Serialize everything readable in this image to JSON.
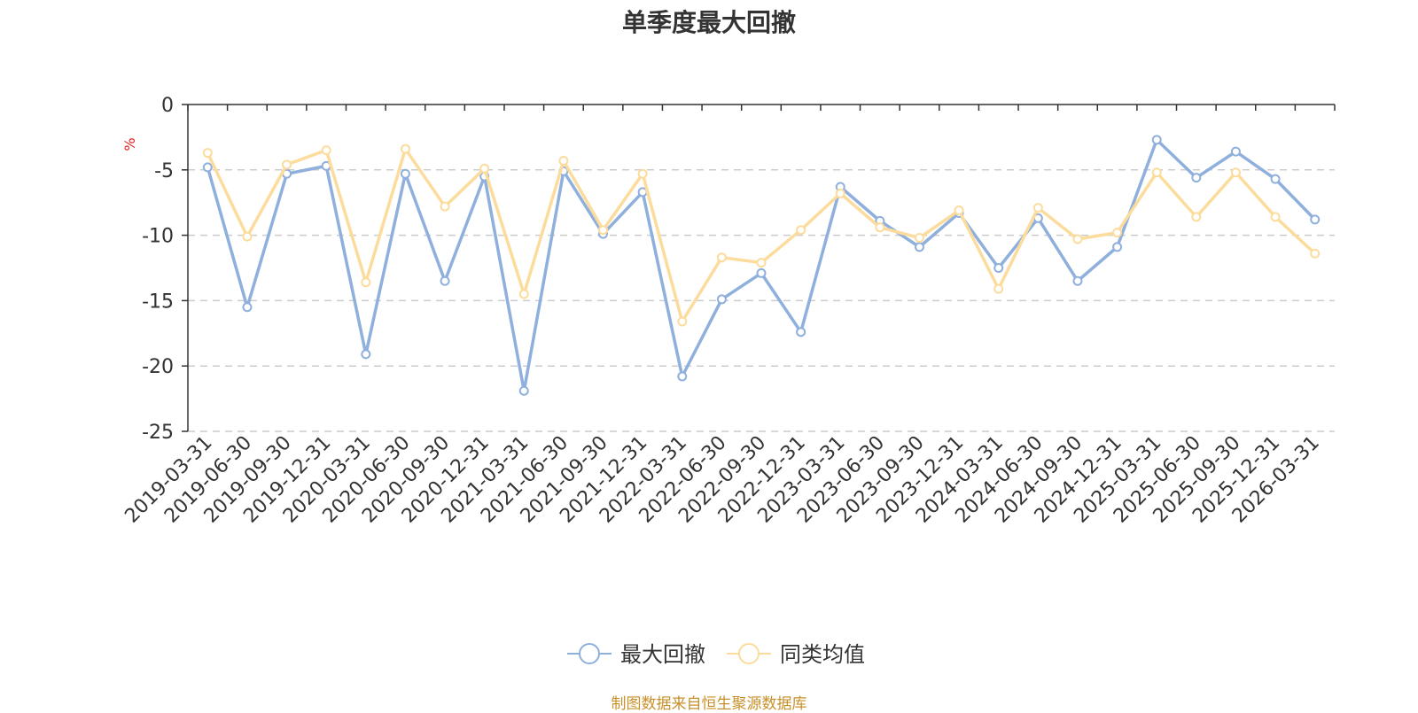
{
  "chart_data": {
    "type": "line",
    "title": "单季度最大回撤",
    "ylabel": "%",
    "ylim": [
      -25,
      0
    ],
    "yticks": [
      0,
      -5,
      -10,
      -15,
      -20,
      -25
    ],
    "grid": true,
    "legend_position": "bottom-center",
    "categories": [
      "2019-03-31",
      "2019-06-30",
      "2019-09-30",
      "2019-12-31",
      "2020-03-31",
      "2020-06-30",
      "2020-09-30",
      "2020-12-31",
      "2021-03-31",
      "2021-06-30",
      "2021-09-30",
      "2021-12-31",
      "2022-03-31",
      "2022-06-30",
      "2022-09-30",
      "2022-12-31",
      "2023-03-31",
      "2023-06-30",
      "2023-09-30",
      "2023-12-31",
      "2024-03-31",
      "2024-06-30",
      "2024-09-30",
      "2024-12-31",
      "2025-03-31",
      "2025-06-30",
      "2025-09-30",
      "2025-12-31",
      "2026-03-31"
    ],
    "series": [
      {
        "name": "最大回撤",
        "color": "#8fb0dc",
        "values": [
          -4.8,
          -15.5,
          -5.3,
          -4.7,
          -19.1,
          -5.3,
          -13.5,
          -5.5,
          -21.9,
          -5.1,
          -9.9,
          -6.7,
          -20.8,
          -14.9,
          -12.9,
          -17.4,
          -6.3,
          -8.9,
          -10.9,
          -8.3,
          -12.5,
          -8.7,
          -13.5,
          -10.9,
          -2.7,
          -5.6,
          -3.6,
          -5.7,
          -8.8
        ]
      },
      {
        "name": "同类均值",
        "color": "#fcdc9c",
        "values": [
          -3.7,
          -10.1,
          -4.6,
          -3.5,
          -13.6,
          -3.4,
          -7.8,
          -4.9,
          -14.5,
          -4.3,
          -9.6,
          -5.3,
          -16.6,
          -11.7,
          -12.1,
          -9.6,
          -6.8,
          -9.4,
          -10.2,
          -8.1,
          -14.1,
          -7.9,
          -10.3,
          -9.8,
          -5.2,
          -8.6,
          -5.2,
          -8.6,
          -11.4
        ]
      }
    ]
  },
  "source_note": "制图数据来自恒生聚源数据库"
}
